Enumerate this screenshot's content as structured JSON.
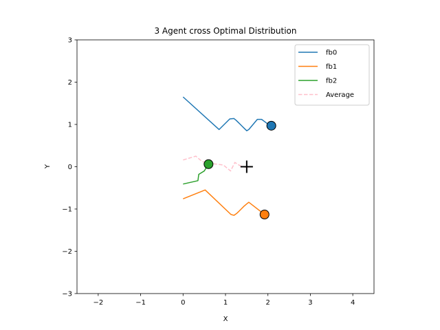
{
  "chart_data": {
    "type": "line",
    "title": "3 Agent cross Optimal Distribution",
    "xlabel": "X",
    "ylabel": "Y",
    "xlim": [
      -2.5,
      4.5
    ],
    "ylim": [
      -3,
      3
    ],
    "xticks": [
      -2,
      -1,
      0,
      1,
      2,
      3,
      4
    ],
    "yticks": [
      -3,
      -2,
      -1,
      0,
      1,
      2,
      3
    ],
    "xtick_labels": [
      "−2",
      "−1",
      "0",
      "1",
      "2",
      "3",
      "4"
    ],
    "ytick_labels": [
      "−3",
      "−2",
      "−1",
      "0",
      "1",
      "2",
      "3"
    ],
    "grid": false,
    "legend_position": "top-right",
    "series": [
      {
        "name": "fb0",
        "color": "#1f77b4",
        "style": "solid",
        "x": [
          0.0,
          0.85,
          1.1,
          1.2,
          1.25,
          1.3,
          1.35,
          1.4,
          1.45,
          1.5,
          1.55,
          1.75,
          1.85,
          2.05
        ],
        "y": [
          1.65,
          0.88,
          1.13,
          1.14,
          1.1,
          1.05,
          1.0,
          0.95,
          0.9,
          0.85,
          0.88,
          1.12,
          1.12,
          0.97
        ]
      },
      {
        "name": "fb1",
        "color": "#ff7f0e",
        "style": "solid",
        "x": [
          0.0,
          0.52,
          1.13,
          1.2,
          1.27,
          1.33,
          1.38,
          1.44,
          1.5,
          1.55,
          1.92
        ],
        "y": [
          -0.76,
          -0.55,
          -1.13,
          -1.15,
          -1.1,
          -1.04,
          -0.99,
          -0.93,
          -0.88,
          -0.84,
          -1.13
        ]
      },
      {
        "name": "fb2",
        "color": "#2ca02c",
        "style": "solid",
        "x": [
          0.0,
          0.35,
          0.37,
          0.5,
          0.55,
          0.58,
          0.62
        ],
        "y": [
          -0.41,
          -0.33,
          -0.18,
          -0.1,
          -0.02,
          0.03,
          0.07
        ]
      },
      {
        "name": "Average",
        "color": "#ffc0cb",
        "style": "dashed",
        "x": [
          0.0,
          0.3,
          0.45,
          0.72,
          0.95,
          1.12,
          1.22,
          1.35,
          1.55
        ],
        "y": [
          0.16,
          0.25,
          0.12,
          0.07,
          0.04,
          -0.1,
          0.1,
          0.02,
          -0.03
        ]
      }
    ],
    "markers": [
      {
        "series": "fb0",
        "x": 2.08,
        "y": 0.97,
        "color": "#1f77b4"
      },
      {
        "series": "fb1",
        "x": 1.92,
        "y": -1.13,
        "color": "#ff7f0e"
      },
      {
        "series": "fb2",
        "x": 0.6,
        "y": 0.06,
        "color": "#2ca02c"
      }
    ],
    "target": {
      "x": 1.5,
      "y": 0.0,
      "symbol": "plus"
    }
  }
}
